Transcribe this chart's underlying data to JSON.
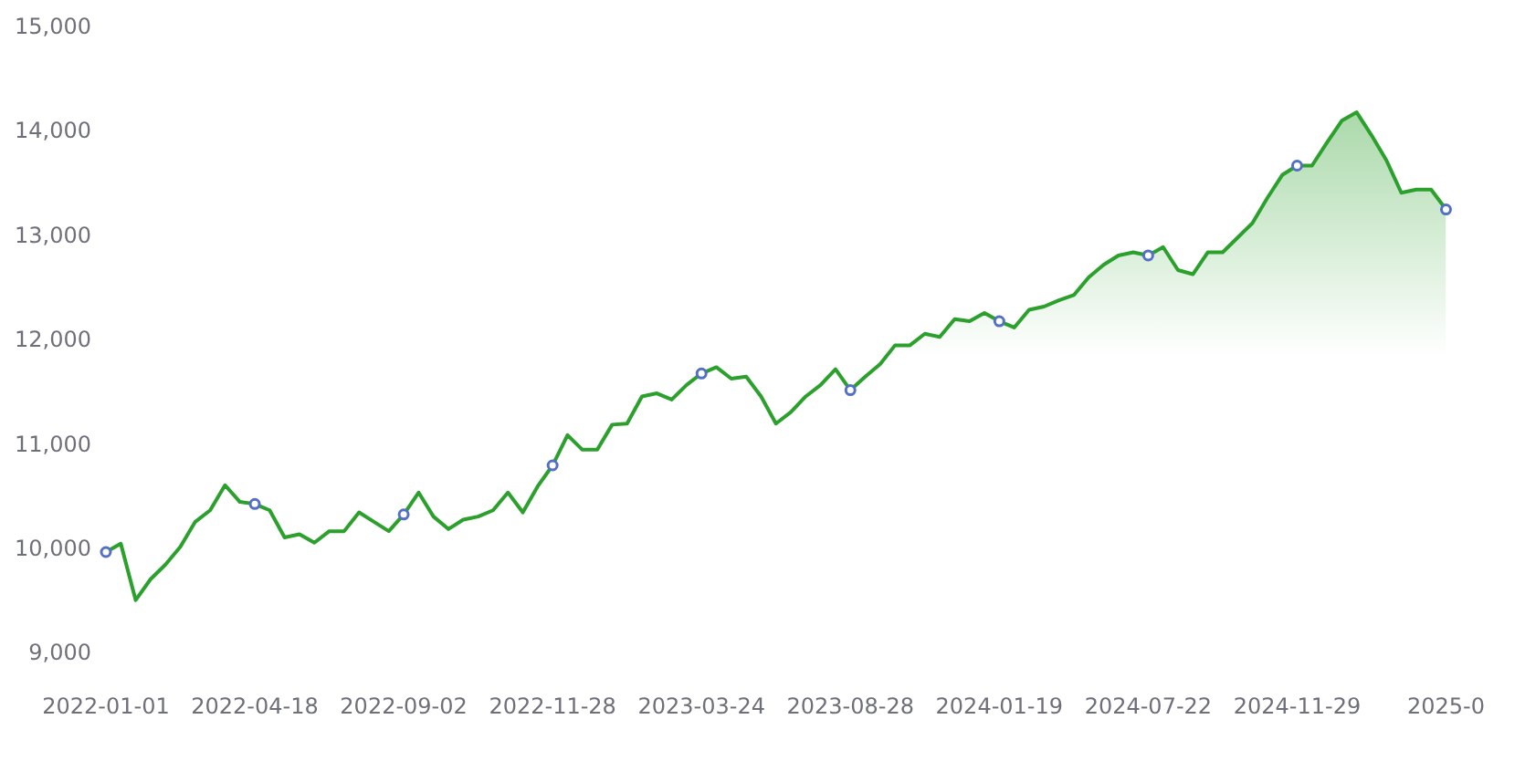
{
  "chart_data": {
    "type": "area",
    "categories": [
      "2022-01-01",
      null,
      null,
      null,
      null,
      null,
      null,
      null,
      null,
      null,
      "2022-04-18",
      null,
      null,
      null,
      null,
      null,
      null,
      null,
      null,
      null,
      "2022-09-02",
      null,
      null,
      null,
      null,
      null,
      null,
      null,
      null,
      null,
      "2022-11-28",
      null,
      null,
      null,
      null,
      null,
      null,
      null,
      null,
      null,
      "2023-03-24",
      null,
      null,
      null,
      null,
      null,
      null,
      null,
      null,
      null,
      "2023-08-28",
      null,
      null,
      null,
      null,
      null,
      null,
      null,
      null,
      null,
      "2024-01-19",
      null,
      null,
      null,
      null,
      null,
      null,
      null,
      null,
      null,
      "2024-07-22",
      null,
      null,
      null,
      null,
      null,
      null,
      null,
      null,
      null,
      "2024-11-29",
      null,
      null,
      null,
      null,
      null,
      null,
      null,
      null,
      null,
      "2025-0"
    ],
    "series": [
      {
        "color": "#2ca02c",
        "values": [
          9980,
          10060,
          9520,
          9720,
          9860,
          10030,
          10270,
          10380,
          10620,
          10460,
          10440,
          10380,
          10120,
          10150,
          10070,
          10180,
          10180,
          10360,
          10270,
          10180,
          10340,
          10550,
          10320,
          10200,
          10290,
          10320,
          10380,
          10550,
          10360,
          10610,
          10810,
          11100,
          10960,
          10960,
          11200,
          11210,
          11470,
          11500,
          11440,
          11580,
          11690,
          11750,
          11640,
          11660,
          11470,
          11210,
          11320,
          11470,
          11580,
          11730,
          11530,
          11660,
          11780,
          11960,
          11960,
          12070,
          12040,
          12210,
          12190,
          12270,
          12190,
          12130,
          12300,
          12330,
          12390,
          12440,
          12610,
          12730,
          12820,
          12850,
          12820,
          12900,
          12680,
          12640,
          12850,
          12850,
          12990,
          13130,
          13370,
          13590,
          13680,
          13680,
          13900,
          14110,
          14190,
          13970,
          13730,
          13420,
          13450,
          13450,
          13260
        ]
      },
      {
        "type": "scatter",
        "color": "#5470c6",
        "marker": "circle",
        "values": [
          9980,
          null,
          null,
          null,
          null,
          null,
          null,
          null,
          null,
          null,
          10440,
          null,
          null,
          null,
          null,
          null,
          null,
          null,
          null,
          null,
          10340,
          null,
          null,
          null,
          null,
          null,
          null,
          null,
          null,
          null,
          10810,
          null,
          null,
          null,
          null,
          null,
          null,
          null,
          null,
          null,
          11690,
          null,
          null,
          null,
          null,
          null,
          null,
          null,
          null,
          null,
          11530,
          null,
          null,
          null,
          null,
          null,
          null,
          null,
          null,
          null,
          12190,
          null,
          null,
          null,
          null,
          null,
          null,
          null,
          null,
          null,
          12820,
          null,
          null,
          null,
          null,
          null,
          null,
          null,
          null,
          null,
          13680,
          null,
          null,
          null,
          null,
          null,
          null,
          null,
          null,
          null,
          13260
        ]
      }
    ],
    "ylim": [
      9000,
      15000
    ],
    "yticks": [
      {
        "value": 9000,
        "label": "9,000"
      },
      {
        "value": 10000,
        "label": "10,000"
      },
      {
        "value": 11000,
        "label": "11,000"
      },
      {
        "value": 12000,
        "label": "12,000"
      },
      {
        "value": 13000,
        "label": "13,000"
      },
      {
        "value": 14000,
        "label": "14,000"
      },
      {
        "value": 15000,
        "label": "15,000"
      }
    ],
    "grid": false,
    "legend": false
  }
}
